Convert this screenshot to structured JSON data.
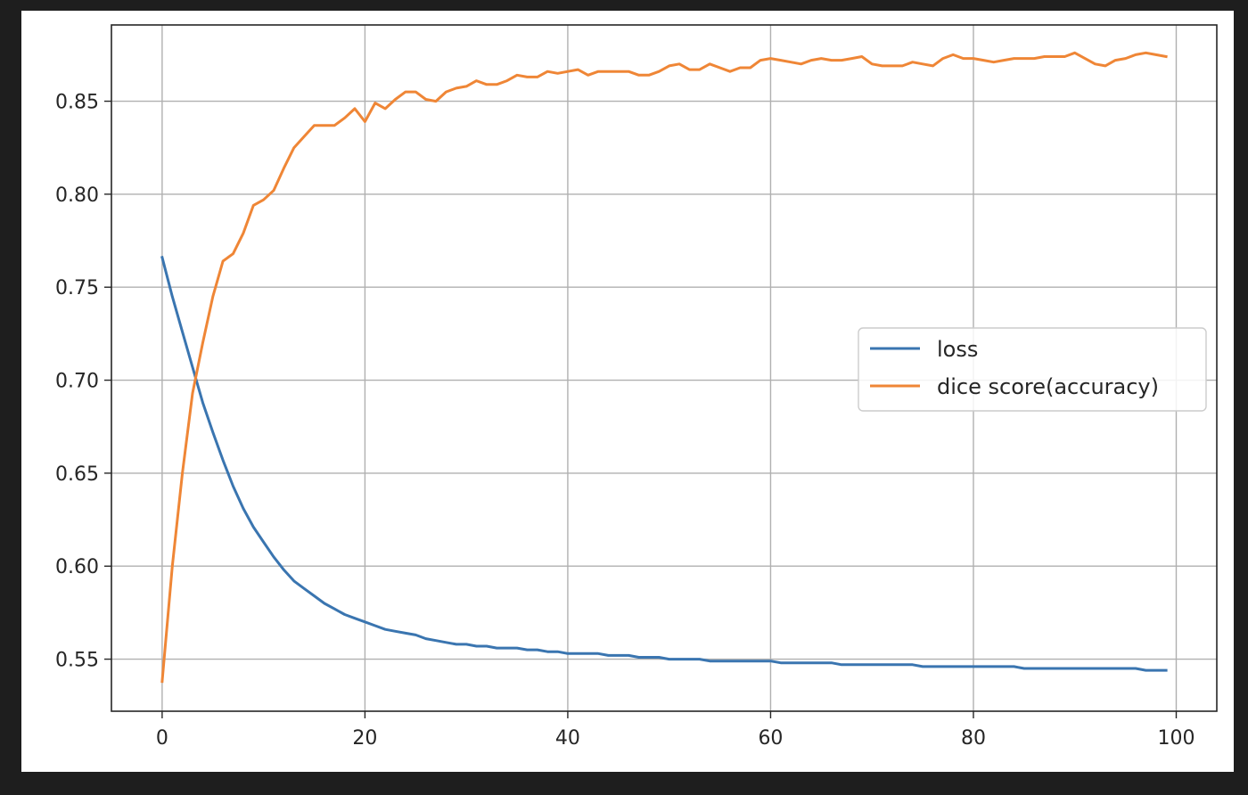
{
  "chart_data": {
    "type": "line",
    "title": "",
    "xlabel": "",
    "ylabel": "",
    "xlim": [
      -5,
      104
    ],
    "ylim": [
      0.522,
      0.891
    ],
    "x_ticks": [
      0,
      20,
      40,
      60,
      80,
      100
    ],
    "y_ticks": [
      0.55,
      0.6,
      0.65,
      0.7,
      0.75,
      0.8,
      0.85
    ],
    "y_tick_labels": [
      "0.55",
      "0.60",
      "0.65",
      "0.70",
      "0.75",
      "0.80",
      "0.85"
    ],
    "grid": true,
    "legend_placement": "center-right",
    "series": [
      {
        "name": "loss",
        "color": "#3a75b0",
        "x": [
          0,
          1,
          2,
          3,
          4,
          5,
          6,
          7,
          8,
          9,
          10,
          11,
          12,
          13,
          14,
          15,
          16,
          17,
          18,
          19,
          20,
          21,
          22,
          23,
          24,
          25,
          26,
          27,
          28,
          29,
          30,
          31,
          32,
          33,
          34,
          35,
          36,
          37,
          38,
          39,
          40,
          41,
          42,
          43,
          44,
          45,
          46,
          47,
          48,
          49,
          50,
          51,
          52,
          53,
          54,
          55,
          56,
          57,
          58,
          59,
          60,
          61,
          62,
          63,
          64,
          65,
          66,
          67,
          68,
          69,
          70,
          71,
          72,
          73,
          74,
          75,
          76,
          77,
          78,
          79,
          80,
          81,
          82,
          83,
          84,
          85,
          86,
          87,
          88,
          89,
          90,
          91,
          92,
          93,
          94,
          95,
          96,
          97,
          98,
          99
        ],
        "values": [
          0.766,
          0.745,
          0.726,
          0.707,
          0.688,
          0.672,
          0.657,
          0.643,
          0.631,
          0.621,
          0.613,
          0.605,
          0.598,
          0.592,
          0.588,
          0.584,
          0.58,
          0.577,
          0.574,
          0.572,
          0.57,
          0.568,
          0.566,
          0.565,
          0.564,
          0.563,
          0.561,
          0.56,
          0.559,
          0.558,
          0.558,
          0.557,
          0.557,
          0.556,
          0.556,
          0.556,
          0.555,
          0.555,
          0.554,
          0.554,
          0.553,
          0.553,
          0.553,
          0.553,
          0.552,
          0.552,
          0.552,
          0.551,
          0.551,
          0.551,
          0.55,
          0.55,
          0.55,
          0.55,
          0.549,
          0.549,
          0.549,
          0.549,
          0.549,
          0.549,
          0.549,
          0.548,
          0.548,
          0.548,
          0.548,
          0.548,
          0.548,
          0.547,
          0.547,
          0.547,
          0.547,
          0.547,
          0.547,
          0.547,
          0.547,
          0.546,
          0.546,
          0.546,
          0.546,
          0.546,
          0.546,
          0.546,
          0.546,
          0.546,
          0.546,
          0.545,
          0.545,
          0.545,
          0.545,
          0.545,
          0.545,
          0.545,
          0.545,
          0.545,
          0.545,
          0.545,
          0.545,
          0.544,
          0.544,
          0.544
        ]
      },
      {
        "name": "dice score(accuracy)",
        "color": "#ef8636",
        "x": [
          0,
          1,
          2,
          3,
          4,
          5,
          6,
          7,
          8,
          9,
          10,
          11,
          12,
          13,
          14,
          15,
          16,
          17,
          18,
          19,
          20,
          21,
          22,
          23,
          24,
          25,
          26,
          27,
          28,
          29,
          30,
          31,
          32,
          33,
          34,
          35,
          36,
          37,
          38,
          39,
          40,
          41,
          42,
          43,
          44,
          45,
          46,
          47,
          48,
          49,
          50,
          51,
          52,
          53,
          54,
          55,
          56,
          57,
          58,
          59,
          60,
          61,
          62,
          63,
          64,
          65,
          66,
          67,
          68,
          69,
          70,
          71,
          72,
          73,
          74,
          75,
          76,
          77,
          78,
          79,
          80,
          81,
          82,
          83,
          84,
          85,
          86,
          87,
          88,
          89,
          90,
          91,
          92,
          93,
          94,
          95,
          96,
          97,
          98,
          99
        ],
        "values": [
          0.538,
          0.6,
          0.65,
          0.693,
          0.72,
          0.745,
          0.764,
          0.768,
          0.779,
          0.794,
          0.797,
          0.802,
          0.814,
          0.825,
          0.831,
          0.837,
          0.837,
          0.837,
          0.841,
          0.846,
          0.839,
          0.849,
          0.846,
          0.851,
          0.855,
          0.855,
          0.851,
          0.85,
          0.855,
          0.857,
          0.858,
          0.861,
          0.859,
          0.859,
          0.861,
          0.864,
          0.863,
          0.863,
          0.866,
          0.865,
          0.866,
          0.867,
          0.864,
          0.866,
          0.866,
          0.866,
          0.866,
          0.864,
          0.864,
          0.866,
          0.869,
          0.87,
          0.867,
          0.867,
          0.87,
          0.868,
          0.866,
          0.868,
          0.868,
          0.872,
          0.873,
          0.872,
          0.871,
          0.87,
          0.872,
          0.873,
          0.872,
          0.872,
          0.873,
          0.874,
          0.87,
          0.869,
          0.869,
          0.869,
          0.871,
          0.87,
          0.869,
          0.873,
          0.875,
          0.873,
          0.873,
          0.872,
          0.871,
          0.872,
          0.873,
          0.873,
          0.873,
          0.874,
          0.874,
          0.874,
          0.876,
          0.873,
          0.87,
          0.869,
          0.872,
          0.873,
          0.875,
          0.876,
          0.875,
          0.874
        ]
      }
    ]
  }
}
